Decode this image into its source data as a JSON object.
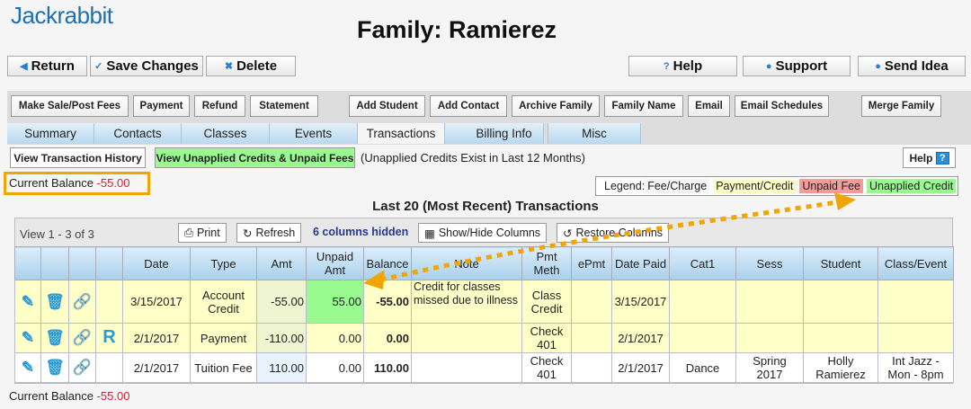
{
  "app": {
    "logo": "Jackrabbit",
    "title": "Family: Ramierez"
  },
  "top_buttons": {
    "return": "Return",
    "save": "Save Changes",
    "delete": "Delete",
    "help": "Help",
    "support": "Support",
    "send_idea": "Send Idea"
  },
  "action_buttons": [
    "Make Sale/Post Fees",
    "Payment",
    "Refund",
    "Statement",
    "Add Student",
    "Add Contact",
    "Archive Family",
    "Family Name",
    "Email",
    "Email Schedules",
    "Merge Family"
  ],
  "tabs": [
    "Summary",
    "Contacts",
    "Classes",
    "Events",
    "Transactions",
    "Billing Info",
    "Misc"
  ],
  "active_tab": "Transactions",
  "sub": {
    "history": "View Transaction History",
    "unapplied": "View Unapplied Credits & Unpaid Fees",
    "note": "(Unapplied Credits Exist in Last 12 Months)",
    "help": "Help"
  },
  "balance": {
    "label": "Current Balance",
    "value": "-55.00"
  },
  "legend": {
    "label": "Legend:",
    "items": [
      {
        "text": "Fee/Charge",
        "color": "#f5f5f5"
      },
      {
        "text": "Payment/Credit",
        "color": "#ffffc8"
      },
      {
        "text": "Unpaid Fee",
        "color": "#f79a9a"
      },
      {
        "text": "Unapplied Credit",
        "color": "#99fa8f"
      }
    ]
  },
  "grid": {
    "heading": "Last 20 (Most Recent) Transactions",
    "view": "View 1 - 3 of 3",
    "print": "Print",
    "refresh": "Refresh",
    "hidden": "6 columns hidden",
    "show_hide": "Show/Hide Columns",
    "restore": "Restore Columns",
    "columns": [
      "",
      "",
      "",
      "",
      "Date",
      "Type",
      "Amt",
      "Unpaid Amt",
      "Balance",
      "Note",
      "Pmt Meth",
      "ePmt",
      "Date Paid",
      "Cat1",
      "Sess",
      "Student",
      "Class/Event"
    ],
    "rows": [
      {
        "r": "",
        "date": "3/15/2017",
        "type": "Account Credit",
        "amt": "-55.00",
        "unpaid": "55.00",
        "balance": "-55.00",
        "note": "Credit for classes missed due to illness",
        "pmt": "Class Credit",
        "epmt": "",
        "paid": "3/15/2017",
        "cat1": "",
        "sess": "",
        "student": "",
        "cls": ""
      },
      {
        "r": "R",
        "date": "2/1/2017",
        "type": "Payment",
        "amt": "-110.00",
        "unpaid": "0.00",
        "balance": "0.00",
        "note": "",
        "pmt": "Check 401",
        "epmt": "",
        "paid": "2/1/2017",
        "cat1": "",
        "sess": "",
        "student": "",
        "cls": ""
      },
      {
        "r": "",
        "date": "2/1/2017",
        "type": "Tuition Fee",
        "amt": "110.00",
        "unpaid": "0.00",
        "balance": "110.00",
        "note": "",
        "pmt": "Check 401",
        "epmt": "",
        "paid": "2/1/2017",
        "cat1": "Dance",
        "sess": "Spring 2017",
        "student": "Holly Ramierez",
        "cls": "Int Jazz - Mon - 8pm"
      }
    ]
  },
  "colors": {
    "accent": "#2a7fd0",
    "highlight": "#f0a500",
    "negative": "#d0213a"
  }
}
